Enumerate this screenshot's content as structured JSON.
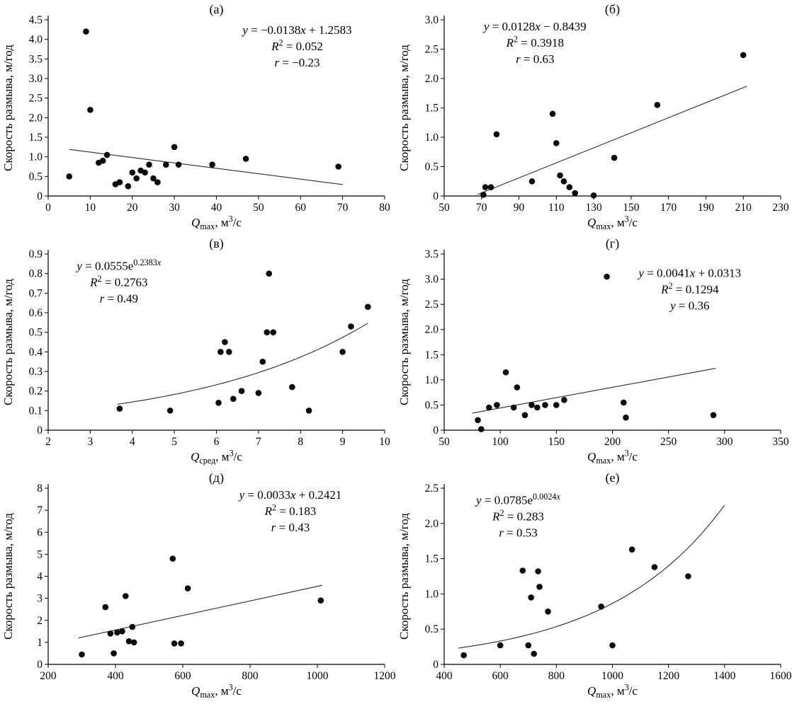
{
  "figure": {
    "background": "#ffffff",
    "point_color": "#0a0a0a",
    "trend_color": "#2b2b2b",
    "axis_color": "#000000"
  },
  "chart_data": [
    {
      "id": "a",
      "type": "scatter",
      "label": "(а)",
      "ylabel": "Скорость размыва, м/год",
      "xlabel": [
        [
          "Q",
          "i"
        ],
        [
          "max",
          "sub"
        ],
        [
          ", м"
        ],
        [
          "3",
          "sup"
        ],
        [
          "/с"
        ]
      ],
      "xlim": [
        0,
        80
      ],
      "ylim": [
        0,
        4.5
      ],
      "xticks": {
        "values": [
          0,
          10,
          20,
          30,
          40,
          50,
          60,
          70,
          80
        ],
        "labels": [
          "0",
          "10",
          "20",
          "30",
          "40",
          "50",
          "60",
          "70",
          "80"
        ]
      },
      "yticks": {
        "values": [
          0,
          0.5,
          1,
          1.5,
          2,
          2.5,
          3,
          3.5,
          4,
          4.5
        ],
        "labels": [
          "0",
          "0.5",
          "1.0",
          "1.5",
          "2.0",
          "2.5",
          "3.0",
          "3.5",
          "4.0",
          "4.5"
        ]
      },
      "points": [
        [
          5,
          0.5
        ],
        [
          9,
          4.2
        ],
        [
          10,
          2.2
        ],
        [
          12,
          0.85
        ],
        [
          13,
          0.9
        ],
        [
          14,
          1.05
        ],
        [
          16,
          0.3
        ],
        [
          17,
          0.35
        ],
        [
          19,
          0.25
        ],
        [
          20,
          0.6
        ],
        [
          21,
          0.45
        ],
        [
          22,
          0.65
        ],
        [
          23,
          0.6
        ],
        [
          24,
          0.8
        ],
        [
          25,
          0.45
        ],
        [
          26,
          0.35
        ],
        [
          28,
          0.8
        ],
        [
          30,
          1.25
        ],
        [
          31,
          0.8
        ],
        [
          39,
          0.8
        ],
        [
          47,
          0.95
        ],
        [
          69,
          0.75
        ]
      ],
      "trend": {
        "kind": "linear",
        "slope": -0.0138,
        "intercept": 1.2583,
        "x1": 5,
        "x2": 70
      },
      "annotation": {
        "cx": 0.74,
        "ty": 0.02,
        "lines": [
          [
            [
              "y",
              "i"
            ],
            [
              " = −0.0138"
            ],
            [
              "x",
              "i"
            ],
            [
              " + 1.2583"
            ]
          ],
          [
            [
              "R",
              "i"
            ],
            [
              "2",
              "sup"
            ],
            [
              " = 0.052"
            ]
          ],
          [
            [
              "r",
              "i"
            ],
            [
              " = −0.23"
            ]
          ]
        ]
      }
    },
    {
      "id": "b",
      "type": "scatter",
      "label": "(б)",
      "ylabel": "Скорость размыва, м/год",
      "xlabel": [
        [
          "Q",
          "i"
        ],
        [
          "max",
          "sub"
        ],
        [
          ", м"
        ],
        [
          "3",
          "sup"
        ],
        [
          "/с"
        ]
      ],
      "xlim": [
        50,
        230
      ],
      "ylim": [
        0,
        3.0
      ],
      "xticks": {
        "values": [
          50,
          70,
          90,
          110,
          130,
          150,
          170,
          190,
          210,
          230
        ],
        "labels": [
          "50",
          "70",
          "90",
          "110",
          "130",
          "150",
          "170",
          "190",
          "210",
          "230"
        ]
      },
      "yticks": {
        "values": [
          0,
          0.5,
          1,
          1.5,
          2,
          2.5,
          3
        ],
        "labels": [
          "0",
          "0.5",
          "1.0",
          "1.5",
          "2.0",
          "2.5",
          "3.0"
        ]
      },
      "points": [
        [
          71,
          0.02
        ],
        [
          72,
          0.15
        ],
        [
          75,
          0.15
        ],
        [
          78,
          1.05
        ],
        [
          97,
          0.25
        ],
        [
          108,
          1.4
        ],
        [
          110,
          0.9
        ],
        [
          112,
          0.35
        ],
        [
          114,
          0.25
        ],
        [
          117,
          0.15
        ],
        [
          120,
          0.05
        ],
        [
          130,
          0.01
        ],
        [
          141,
          0.65
        ],
        [
          164,
          1.55
        ],
        [
          210,
          2.4
        ]
      ],
      "trend": {
        "kind": "linear",
        "slope": 0.0128,
        "intercept": -0.8439,
        "x1": 68,
        "x2": 212
      },
      "annotation": {
        "cx": 0.27,
        "ty": 0.0,
        "lines": [
          [
            [
              "y",
              "i"
            ],
            [
              " = 0.0128"
            ],
            [
              "x",
              "i"
            ],
            [
              " − 0.8439"
            ]
          ],
          [
            [
              "R",
              "i"
            ],
            [
              "2",
              "sup"
            ],
            [
              " = 0.3918"
            ]
          ],
          [
            [
              "r",
              "i"
            ],
            [
              " = 0.63"
            ]
          ]
        ]
      }
    },
    {
      "id": "v",
      "type": "scatter",
      "label": "(в)",
      "ylabel": "Скорость размыва, м/год",
      "xlabel": [
        [
          "Q",
          "i"
        ],
        [
          "сред",
          "sub"
        ],
        [
          ", м"
        ],
        [
          "3",
          "sup"
        ],
        [
          "/с"
        ]
      ],
      "xlim": [
        2,
        10
      ],
      "ylim": [
        0,
        0.9
      ],
      "xticks": {
        "values": [
          2,
          3,
          4,
          5,
          6,
          7,
          8,
          9,
          10
        ],
        "labels": [
          "2",
          "3",
          "4",
          "5",
          "6",
          "7",
          "8",
          "9",
          "10"
        ]
      },
      "yticks": {
        "values": [
          0,
          0.1,
          0.2,
          0.3,
          0.4,
          0.5,
          0.6,
          0.7,
          0.8,
          0.9
        ],
        "labels": [
          "0",
          "0.1",
          "0.2",
          "0.3",
          "0.4",
          "0.5",
          "0.6",
          "0.7",
          "0.8",
          "0.9"
        ]
      },
      "points": [
        [
          3.7,
          0.11
        ],
        [
          4.9,
          0.1
        ],
        [
          6.05,
          0.14
        ],
        [
          6.1,
          0.4
        ],
        [
          6.2,
          0.45
        ],
        [
          6.3,
          0.4
        ],
        [
          6.4,
          0.16
        ],
        [
          6.6,
          0.2
        ],
        [
          7.0,
          0.19
        ],
        [
          7.1,
          0.35
        ],
        [
          7.2,
          0.5
        ],
        [
          7.25,
          0.8
        ],
        [
          7.35,
          0.5
        ],
        [
          7.8,
          0.22
        ],
        [
          8.2,
          0.1
        ],
        [
          9.0,
          0.4
        ],
        [
          9.2,
          0.53
        ],
        [
          9.6,
          0.63
        ]
      ],
      "trend": {
        "kind": "exp",
        "a": 0.0555,
        "k": 0.2383,
        "x1": 3.65,
        "x2": 9.6
      },
      "annotation": {
        "cx": 0.21,
        "ty": 0.03,
        "lines": [
          [
            [
              "y",
              "i"
            ],
            [
              " = 0.0555e"
            ],
            [
              "0.2383",
              "sup"
            ],
            [
              "x",
              "isup"
            ]
          ],
          [
            [
              "R",
              "i"
            ],
            [
              "2",
              "sup"
            ],
            [
              " = 0.2763"
            ]
          ],
          [
            [
              "r",
              "i"
            ],
            [
              " = 0.49"
            ]
          ]
        ]
      }
    },
    {
      "id": "g",
      "type": "scatter",
      "label": "(г)",
      "ylabel": "Скорость размыва, м/год",
      "xlabel": [
        [
          "Q",
          "i"
        ],
        [
          "max",
          "sub"
        ],
        [
          ", м"
        ],
        [
          "3",
          "sup"
        ],
        [
          "/с"
        ]
      ],
      "xlim": [
        50,
        350
      ],
      "ylim": [
        0,
        3.5
      ],
      "xticks": {
        "values": [
          50,
          100,
          150,
          200,
          250,
          300,
          350
        ],
        "labels": [
          "50",
          "100",
          "150",
          "200",
          "250",
          "300",
          "350"
        ]
      },
      "yticks": {
        "values": [
          0,
          0.5,
          1,
          1.5,
          2,
          2.5,
          3,
          3.5
        ],
        "labels": [
          "0",
          "0.5",
          "1.0",
          "1.5",
          "2.0",
          "2.5",
          "3.0",
          "3.5"
        ]
      },
      "points": [
        [
          80,
          0.2
        ],
        [
          83,
          0.02
        ],
        [
          90,
          0.45
        ],
        [
          97,
          0.5
        ],
        [
          105,
          1.15
        ],
        [
          112,
          0.45
        ],
        [
          115,
          0.85
        ],
        [
          122,
          0.3
        ],
        [
          128,
          0.5
        ],
        [
          133,
          0.45
        ],
        [
          140,
          0.5
        ],
        [
          150,
          0.5
        ],
        [
          157,
          0.6
        ],
        [
          195,
          3.05
        ],
        [
          210,
          0.55
        ],
        [
          212,
          0.25
        ],
        [
          290,
          0.3
        ]
      ],
      "trend": {
        "kind": "linear",
        "slope": 0.0041,
        "intercept": 0.0313,
        "x1": 75,
        "x2": 292
      },
      "annotation": {
        "cx": 0.73,
        "ty": 0.07,
        "lines": [
          [
            [
              "y",
              "i"
            ],
            [
              " = 0.0041"
            ],
            [
              "x",
              "i"
            ],
            [
              " + 0.0313"
            ]
          ],
          [
            [
              "R",
              "i"
            ],
            [
              "2",
              "sup"
            ],
            [
              " = 0.1294"
            ]
          ],
          [
            [
              "y",
              "i"
            ],
            [
              " = 0.36"
            ]
          ]
        ]
      }
    },
    {
      "id": "d",
      "type": "scatter",
      "label": "(д)",
      "ylabel": "Скорость размыва, м/год",
      "xlabel": [
        [
          "Q",
          "i"
        ],
        [
          "max",
          "sub"
        ],
        [
          ", м"
        ],
        [
          "3",
          "sup"
        ],
        [
          "/с"
        ]
      ],
      "xlim": [
        200,
        1200
      ],
      "ylim": [
        0,
        8
      ],
      "xticks": {
        "values": [
          200,
          400,
          600,
          800,
          1000,
          1200
        ],
        "labels": [
          "200",
          "400",
          "600",
          "800",
          "1000",
          "1200"
        ]
      },
      "yticks": {
        "values": [
          0,
          1,
          2,
          3,
          4,
          5,
          6,
          7,
          8
        ],
        "labels": [
          "0",
          "1",
          "2",
          "3",
          "4",
          "5",
          "6",
          "7",
          "8"
        ]
      },
      "points": [
        [
          300,
          0.45
        ],
        [
          370,
          2.6
        ],
        [
          385,
          1.4
        ],
        [
          395,
          0.5
        ],
        [
          405,
          1.45
        ],
        [
          420,
          1.5
        ],
        [
          430,
          3.1
        ],
        [
          440,
          1.05
        ],
        [
          450,
          1.7
        ],
        [
          455,
          1.0
        ],
        [
          570,
          4.8
        ],
        [
          575,
          0.95
        ],
        [
          595,
          0.95
        ],
        [
          615,
          3.45
        ],
        [
          1010,
          2.9
        ]
      ],
      "trend": {
        "kind": "linear",
        "slope": 0.0033,
        "intercept": 0.2421,
        "x1": 290,
        "x2": 1015
      },
      "annotation": {
        "cx": 0.72,
        "ty": 0.0,
        "lines": [
          [
            [
              "y",
              "i"
            ],
            [
              " = 0.0033"
            ],
            [
              "x",
              "i"
            ],
            [
              " + 0.2421"
            ]
          ],
          [
            [
              "R",
              "i"
            ],
            [
              "2",
              "sup"
            ],
            [
              " = 0.183"
            ]
          ],
          [
            [
              "r",
              "i"
            ],
            [
              " = 0.43"
            ]
          ]
        ]
      }
    },
    {
      "id": "e",
      "type": "scatter",
      "label": "(е)",
      "ylabel": "Скорость размыва, м/год",
      "xlabel": [
        [
          "Q",
          "i"
        ],
        [
          "max",
          "sub"
        ],
        [
          ", м"
        ],
        [
          "3",
          "sup"
        ],
        [
          "/с"
        ]
      ],
      "xlim": [
        400,
        1600
      ],
      "ylim": [
        0,
        2.5
      ],
      "xticks": {
        "values": [
          400,
          600,
          800,
          1000,
          1200,
          1400,
          1600
        ],
        "labels": [
          "400",
          "600",
          "800",
          "1000",
          "1200",
          "1400",
          "1600"
        ]
      },
      "yticks": {
        "values": [
          0,
          0.5,
          1,
          1.5,
          2,
          2.5
        ],
        "labels": [
          "0",
          "0.5",
          "1.0",
          "1.5",
          "2.0",
          "2.5"
        ]
      },
      "points": [
        [
          470,
          0.13
        ],
        [
          600,
          0.27
        ],
        [
          680,
          1.33
        ],
        [
          700,
          0.27
        ],
        [
          710,
          0.95
        ],
        [
          720,
          0.15
        ],
        [
          735,
          1.32
        ],
        [
          740,
          1.1
        ],
        [
          770,
          0.75
        ],
        [
          960,
          0.82
        ],
        [
          1000,
          0.27
        ],
        [
          1070,
          1.63
        ],
        [
          1150,
          1.38
        ],
        [
          1270,
          1.25
        ]
      ],
      "trend": {
        "kind": "exp",
        "a": 0.0785,
        "k": 0.0024,
        "x1": 450,
        "x2": 1400
      },
      "annotation": {
        "cx": 0.22,
        "ty": 0.03,
        "lines": [
          [
            [
              "y",
              "i"
            ],
            [
              " = 0.0785e"
            ],
            [
              "0.0024",
              "sup"
            ],
            [
              "x",
              "isup"
            ]
          ],
          [
            [
              "R",
              "i"
            ],
            [
              "2",
              "sup"
            ],
            [
              " = 0.283"
            ]
          ],
          [
            [
              "r",
              "i"
            ],
            [
              " = 0.53"
            ]
          ]
        ]
      }
    }
  ]
}
